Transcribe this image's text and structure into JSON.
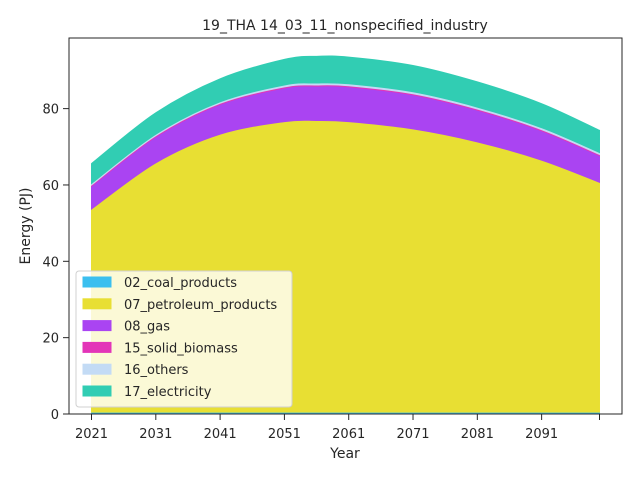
{
  "chart_data": {
    "type": "area",
    "stacked": true,
    "title": "19_THA 14_03_11_nonspecified_industry",
    "xlabel": "Year",
    "ylabel": "Energy (PJ)",
    "x": [
      2021,
      2031,
      2041,
      2051,
      2056,
      2061,
      2071,
      2081,
      2091,
      2100
    ],
    "x_ticks": [
      2021,
      2031,
      2041,
      2051,
      2061,
      2071,
      2081,
      2091
    ],
    "xlim": [
      2017.5,
      2103.5
    ],
    "ylim": [
      0,
      98.5
    ],
    "y_ticks": [
      0,
      20,
      40,
      60,
      80
    ],
    "grid": false,
    "legend_position": "lower-left",
    "series": [
      {
        "name": "02_coal_products",
        "color": "#3bbfef",
        "values": [
          0.5,
          0.5,
          0.5,
          0.5,
          0.5,
          0.5,
          0.5,
          0.5,
          0.5,
          0.5
        ]
      },
      {
        "name": "07_petroleum_products",
        "color": "#e8df33",
        "values": [
          53.2,
          65.3,
          72.8,
          76.1,
          76.4,
          76.1,
          74.2,
          70.8,
          66.0,
          60.2
        ]
      },
      {
        "name": "08_gas",
        "color": "#aa44f2",
        "values": [
          6.0,
          6.8,
          7.8,
          8.8,
          9.0,
          9.1,
          8.9,
          8.3,
          7.7,
          7.0
        ]
      },
      {
        "name": "15_solid_biomass",
        "color": "#e335b8",
        "values": [
          0.3,
          0.3,
          0.3,
          0.3,
          0.3,
          0.3,
          0.3,
          0.3,
          0.3,
          0.3
        ]
      },
      {
        "name": "16_others",
        "color": "#c3dbf5",
        "values": [
          0.4,
          0.4,
          0.4,
          0.5,
          0.5,
          0.5,
          0.5,
          0.5,
          0.5,
          0.5
        ]
      },
      {
        "name": "17_electricity",
        "color": "#31cdb3",
        "values": [
          5.2,
          5.6,
          6.0,
          6.7,
          7.0,
          7.0,
          6.9,
          6.6,
          6.3,
          5.8
        ]
      }
    ]
  }
}
